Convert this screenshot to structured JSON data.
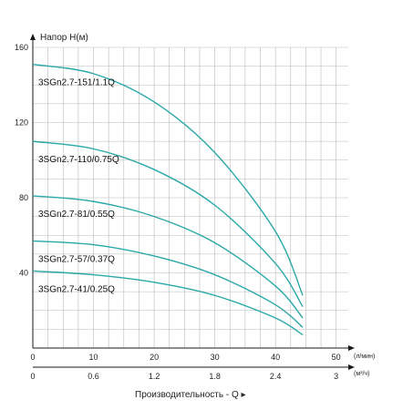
{
  "chart_data": {
    "type": "line",
    "ylabel": "Напор H(м)",
    "xlabel": "Производительность - Q ▸",
    "x_unit_primary": "(л/мин)",
    "x_unit_secondary": "(м³/ч)",
    "xlim": [
      0,
      52
    ],
    "ylim": [
      0,
      160
    ],
    "x_ticks_primary": [
      0,
      10,
      20,
      30,
      40,
      50
    ],
    "x_ticks_secondary": [
      {
        "value": 0,
        "label": "0"
      },
      {
        "value": 10,
        "label": "0.6"
      },
      {
        "value": 20,
        "label": "1.2"
      },
      {
        "value": 30,
        "label": "1.8"
      },
      {
        "value": 40,
        "label": "2.4"
      },
      {
        "value": 50,
        "label": "3"
      }
    ],
    "y_ticks": [
      40,
      80,
      120,
      160
    ],
    "grid": true,
    "line_color": "#2aa8a8",
    "series": [
      {
        "name": "3SGn2.7-151/1.1Q",
        "x": [
          0,
          10,
          20,
          30,
          40,
          44.5
        ],
        "y": [
          151,
          146,
          131,
          104,
          62,
          28
        ]
      },
      {
        "name": "3SGn2.7-110/0.75Q",
        "x": [
          0,
          10,
          20,
          30,
          40,
          44.5
        ],
        "y": [
          110,
          106,
          95,
          76,
          45,
          22
        ]
      },
      {
        "name": "3SGn2.7-81/0.55Q",
        "x": [
          0,
          10,
          20,
          30,
          40,
          44.5
        ],
        "y": [
          81,
          78,
          70,
          56,
          33,
          16
        ]
      },
      {
        "name": "3SGn2.7-57/0.37Q",
        "x": [
          0,
          10,
          20,
          30,
          40,
          44.5
        ],
        "y": [
          57,
          55,
          49,
          39,
          23,
          11
        ]
      },
      {
        "name": "3SGn2.7-41/0.25Q",
        "x": [
          0,
          10,
          20,
          30,
          40,
          44.5
        ],
        "y": [
          41,
          39,
          35,
          28,
          16,
          7
        ]
      }
    ]
  }
}
